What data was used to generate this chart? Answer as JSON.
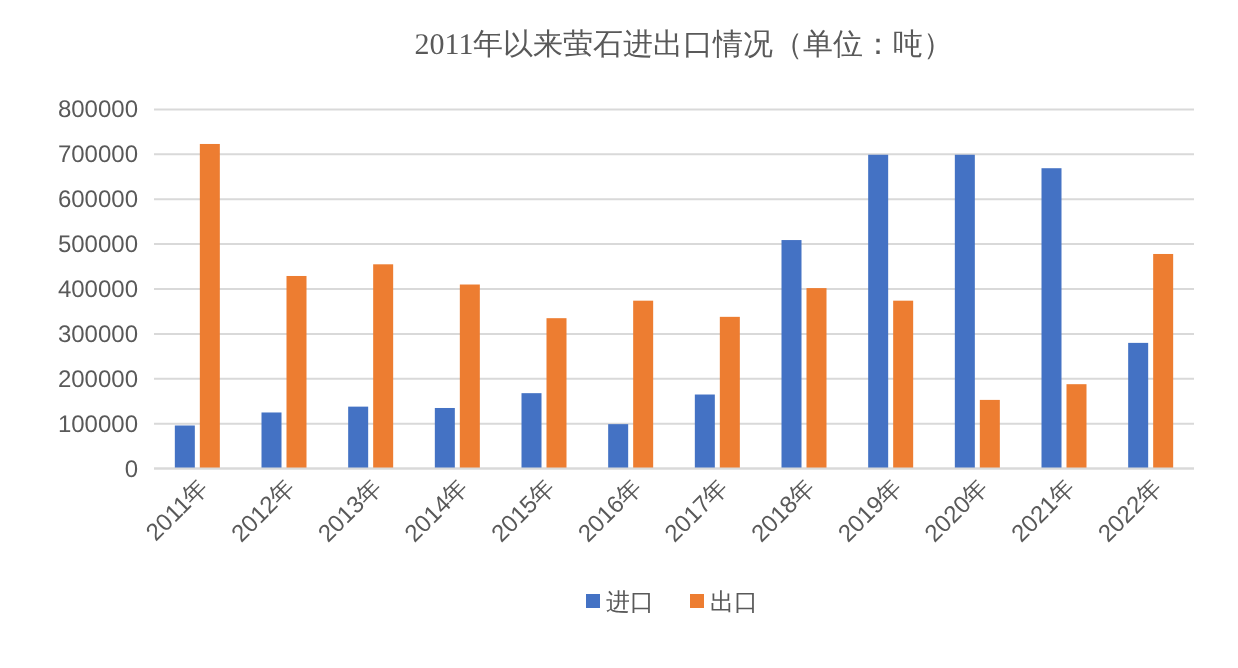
{
  "chart_data": {
    "type": "bar",
    "title": "2011年以来萤石进出口情况（单位：吨）",
    "categories": [
      "2011年",
      "2012年",
      "2013年",
      "2014年",
      "2015年",
      "2016年",
      "2017年",
      "2018年",
      "2019年",
      "2020年",
      "2021年",
      "2022年"
    ],
    "series": [
      {
        "name": "进口",
        "color": "#4472c4",
        "values": [
          96000,
          125000,
          138000,
          135000,
          168000,
          99000,
          165000,
          509000,
          699000,
          699000,
          669000,
          280000
        ]
      },
      {
        "name": "出口",
        "color": "#ed7d31",
        "values": [
          723000,
          429000,
          455000,
          410000,
          335000,
          374000,
          338000,
          402000,
          374000,
          153000,
          188000,
          478000
        ]
      }
    ],
    "ylim": [
      0,
      800000
    ],
    "yticks": [
      0,
      100000,
      200000,
      300000,
      400000,
      500000,
      600000,
      700000,
      800000
    ],
    "grid": "y",
    "legend": "bottom"
  }
}
